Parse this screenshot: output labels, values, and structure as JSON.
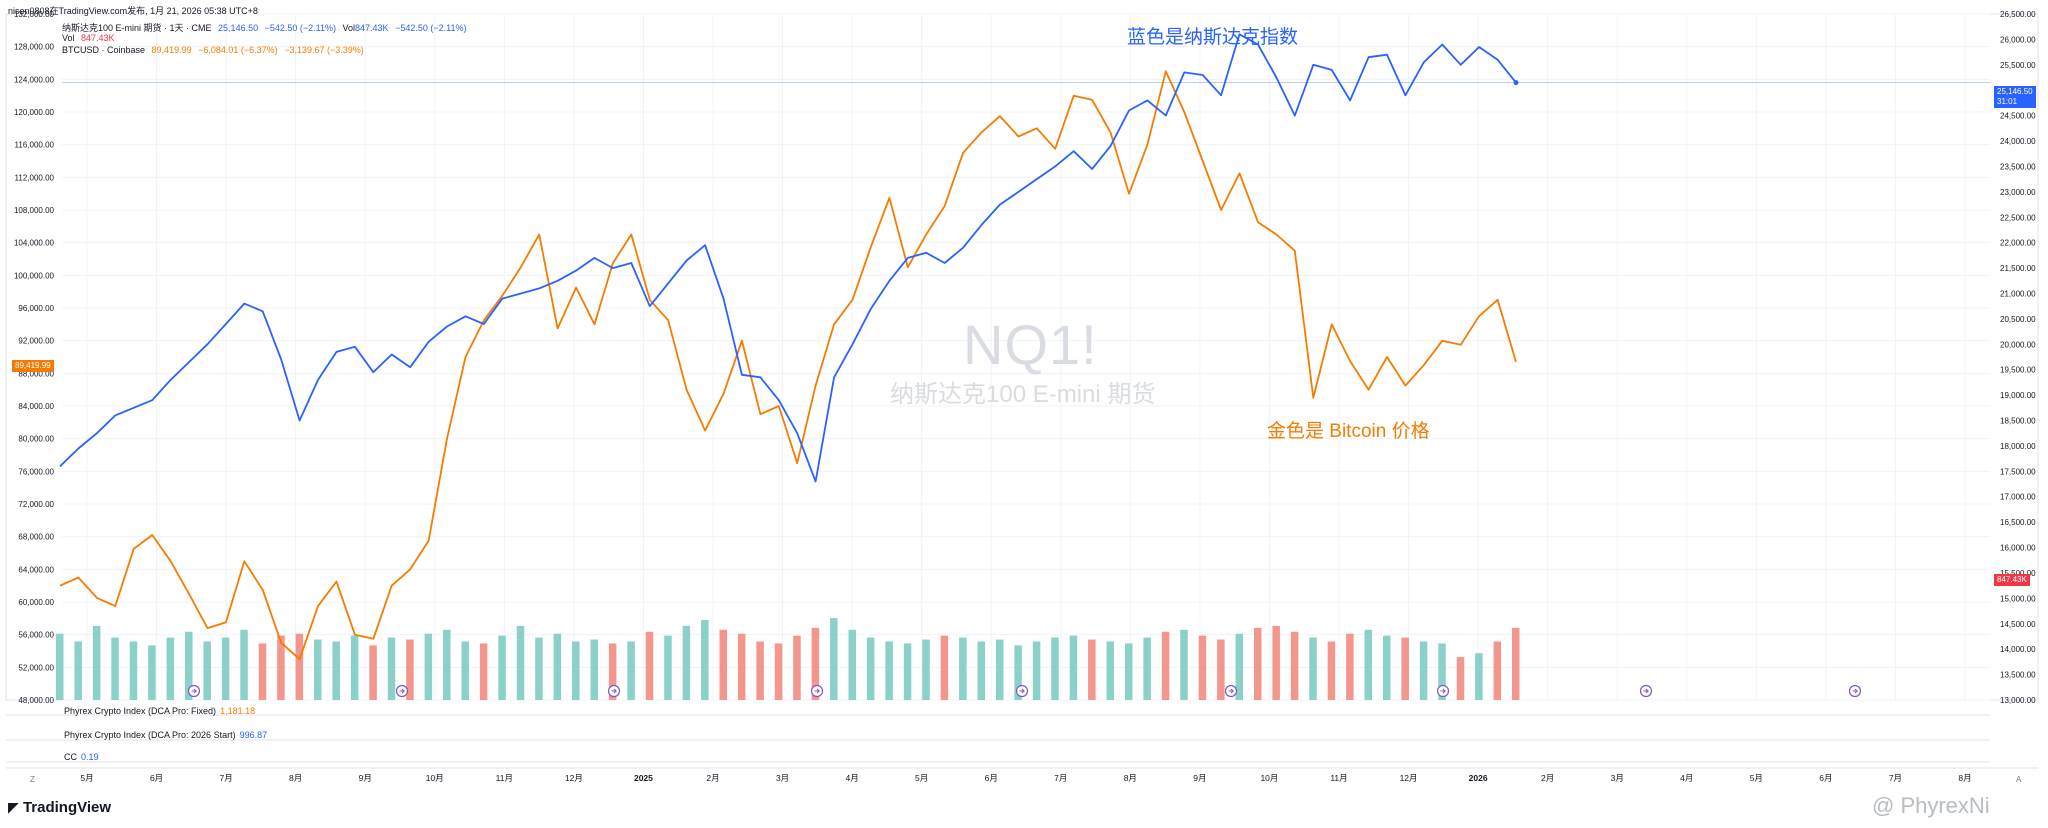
{
  "header": {
    "author_line": "nisen0808在TradingView.com发布, 1月 21, 2026 05:38 UTC+8"
  },
  "legend": {
    "nq_title": "纳斯达克100 E-mini 期货 · 1天 · CME",
    "nq_price": "25,146.50",
    "nq_change": "−542.50 (−2.11%)",
    "nq_vol_label": "Vol",
    "nq_vol": "847.43K",
    "vol_label": "Vol",
    "vol_value": "847.43K",
    "btc_title": "BTCUSD · Coinbase",
    "btc_price": "89,419.99",
    "btc_change1": "−6,084.01 (−6.37%)",
    "btc_change2": "−3,139.67 (−3.39%)"
  },
  "watermark": {
    "symbol": "NQ1!",
    "name": "纳斯达克100 E-mini 期货"
  },
  "annotations": {
    "blue": "蓝色是纳斯达克指数",
    "orange": "金色是 Bitcoin 价格"
  },
  "indicators": [
    {
      "label": "Phyrex Crypto Index (DCA Pro: Fixed)",
      "value": "1,181.18",
      "color": "#f57c00"
    },
    {
      "label": "Phyrex Crypto Index (DCA Pro: 2026 Start)",
      "value": "996.87",
      "color": "#2962ff"
    },
    {
      "label": "CC",
      "value": "0.19",
      "color": "#2962ff"
    }
  ],
  "badges": {
    "right_price": "25,146.50",
    "right_time": "31:01",
    "right_vol": "847.43K",
    "left_btc": "89,419.99"
  },
  "branding": {
    "tradingview": "TradingView",
    "watermark": "@ PhyrexNi",
    "corner_left": "Z",
    "corner_right": "A"
  },
  "colors": {
    "nq": "#2962ff",
    "btc": "#f57c00",
    "vol_up": "#80cbc4",
    "vol_down": "#f28b82",
    "grid": "#f0f3fa"
  },
  "chart_data": {
    "type": "line",
    "x_labels": [
      "5月",
      "6月",
      "7月",
      "8月",
      "9月",
      "10月",
      "11月",
      "12月",
      "2025",
      "2月",
      "3月",
      "4月",
      "5月",
      "6月",
      "7月",
      "8月",
      "9月",
      "10月",
      "11月",
      "12月",
      "2026",
      "2月",
      "3月",
      "4月",
      "5月",
      "6月",
      "7月",
      "8月"
    ],
    "left_axis_ticks": [
      "132,000.00",
      "128,000.00",
      "124,000.00",
      "120,000.00",
      "116,000.00",
      "112,000.00",
      "108,000.00",
      "104,000.00",
      "100,000.00",
      "96,000.00",
      "92,000.00",
      "88,000.00",
      "84,000.00",
      "80,000.00",
      "76,000.00",
      "72,000.00",
      "68,000.00",
      "64,000.00",
      "60,000.00",
      "56,000.00",
      "52,000.00",
      "48,000.00"
    ],
    "right_axis_ticks": [
      "26,500.00",
      "26,000.00",
      "25,500.00",
      "25,000.00",
      "24,500.00",
      "24,000.00",
      "23,500.00",
      "23,000.00",
      "22,500.00",
      "22,000.00",
      "21,500.00",
      "21,000.00",
      "20,500.00",
      "20,000.00",
      "19,500.00",
      "19,000.00",
      "18,500.00",
      "18,000.00",
      "17,500.00",
      "17,000.00",
      "16,500.00",
      "16,000.00",
      "15,500.00",
      "15,000.00",
      "14,500.00",
      "14,000.00",
      "13,500.00",
      "13,000.00"
    ],
    "btc_ylim": [
      48000,
      132000
    ],
    "nq_ylim": [
      13000,
      26500
    ],
    "series": [
      {
        "name": "纳斯达克100 E-mini 期货",
        "axis": "right",
        "values": [
          17600,
          17950,
          18250,
          18600,
          18750,
          18900,
          19300,
          19650,
          20000,
          20400,
          20800,
          20650,
          19700,
          18500,
          19300,
          19850,
          19950,
          19450,
          19800,
          19550,
          20050,
          20350,
          20550,
          20400,
          20900,
          21000,
          21100,
          21250,
          21450,
          21700,
          21500,
          21600,
          20750,
          21200,
          21650,
          21950,
          20900,
          19400,
          19350,
          18900,
          18250,
          17300,
          19350,
          20000,
          20700,
          21250,
          21700,
          21800,
          21600,
          21900,
          22350,
          22750,
          23000,
          23250,
          23500,
          23800,
          23450,
          23900,
          24600,
          24800,
          24500,
          25350,
          25300,
          24900,
          26100,
          25900,
          25250,
          24500,
          25500,
          25400,
          24800,
          25650,
          25700,
          24900,
          25550,
          25900,
          25500,
          25850,
          25600,
          25150
        ]
      },
      {
        "name": "BTCUSD · Coinbase",
        "axis": "left",
        "values": [
          62000,
          63000,
          60500,
          59500,
          66500,
          68200,
          65000,
          61000,
          56800,
          57500,
          65000,
          61500,
          55000,
          53000,
          59500,
          62500,
          56000,
          55500,
          62000,
          64000,
          67500,
          80000,
          90000,
          94500,
          97500,
          101000,
          105000,
          93500,
          98500,
          94000,
          101500,
          105000,
          97000,
          94500,
          86000,
          81000,
          85500,
          92000,
          83000,
          84000,
          77000,
          86500,
          94000,
          97000,
          103500,
          109500,
          101000,
          105000,
          108500,
          115000,
          117500,
          119500,
          117000,
          118000,
          115500,
          122000,
          121500,
          117500,
          110000,
          116000,
          125000,
          120000,
          114000,
          108000,
          112500,
          106500,
          105000,
          103000,
          85000,
          94000,
          89500,
          86000,
          90000,
          86500,
          89000,
          92000,
          91500,
          95000,
          97000,
          89400
        ]
      }
    ],
    "volume": [
      34,
      30,
      38,
      32,
      30,
      28,
      32,
      35,
      30,
      32,
      36,
      29,
      33,
      34,
      31,
      30,
      33,
      28,
      32,
      31,
      34,
      36,
      30,
      29,
      33,
      38,
      32,
      34,
      30,
      31,
      29,
      30,
      35,
      33,
      38,
      41,
      36,
      34,
      30,
      29,
      33,
      37,
      42,
      36,
      32,
      30,
      29,
      31,
      33,
      32,
      30,
      31,
      28,
      30,
      32,
      33,
      31,
      30,
      29,
      32,
      35,
      36,
      33,
      31,
      34,
      37,
      38,
      35,
      32,
      30,
      34,
      36,
      33,
      32,
      30,
      29,
      22,
      24,
      30,
      37
    ]
  }
}
